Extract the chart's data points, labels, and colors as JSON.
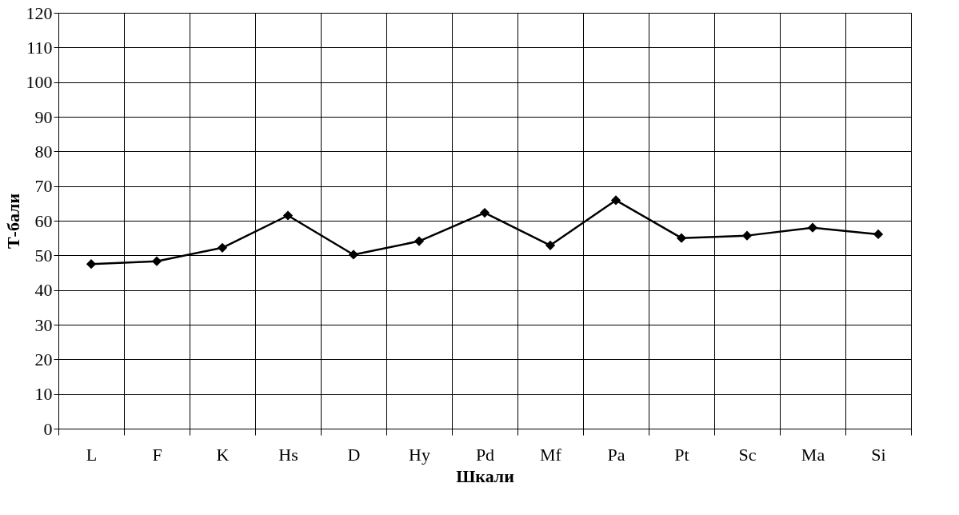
{
  "chart_data": {
    "type": "line",
    "xlabel": "Шкали",
    "ylabel": "Т-бали",
    "categories": [
      "L",
      "F",
      "K",
      "Hs",
      "D",
      "Hy",
      "Pd",
      "Mf",
      "Pa",
      "Pt",
      "Sc",
      "Ma",
      "Si"
    ],
    "series": [
      {
        "color": "#000000",
        "values": [
          47.5,
          48.3,
          52.2,
          61.5,
          50.2,
          54.1,
          62.3,
          52.9,
          65.9,
          55.0,
          55.7,
          58.0,
          56.1
        ]
      }
    ],
    "ylim": [
      0,
      120
    ],
    "yticks": [
      0,
      10,
      20,
      30,
      40,
      50,
      60,
      70,
      80,
      90,
      100,
      110,
      120
    ],
    "grid": true,
    "legend": false,
    "marker": "diamond",
    "line_style": "solid"
  }
}
